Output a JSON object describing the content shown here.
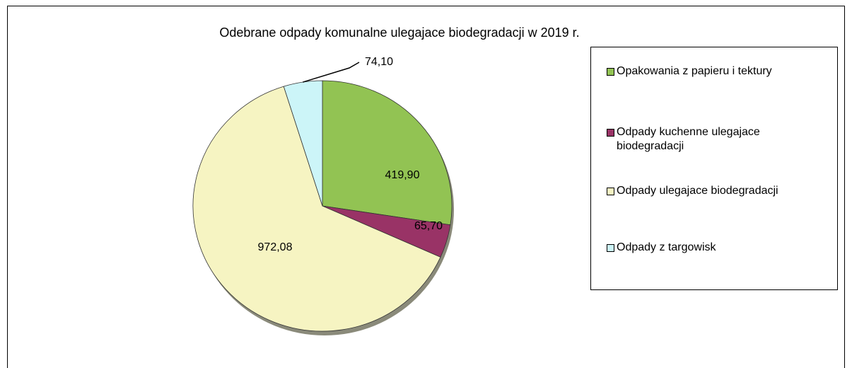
{
  "chart_data": {
    "type": "pie",
    "title": "Odebrane odpady komunalne  ulegajace biodegradacji w 2019 r.",
    "categories": [
      "Opakowania z papieru i tektury",
      "Odpady kuchenne ulegajace biodegradacji",
      "Odpady ulegajace biodegradacji",
      "Odpady z targowisk"
    ],
    "values": [
      419.9,
      65.7,
      972.08,
      74.1
    ],
    "value_labels": [
      "419,90",
      "65,70",
      "972,08",
      "74,10"
    ],
    "colors": [
      "#92c353",
      "#993366",
      "#f6f4c2",
      "#ccf5f8"
    ],
    "legend": "right"
  }
}
